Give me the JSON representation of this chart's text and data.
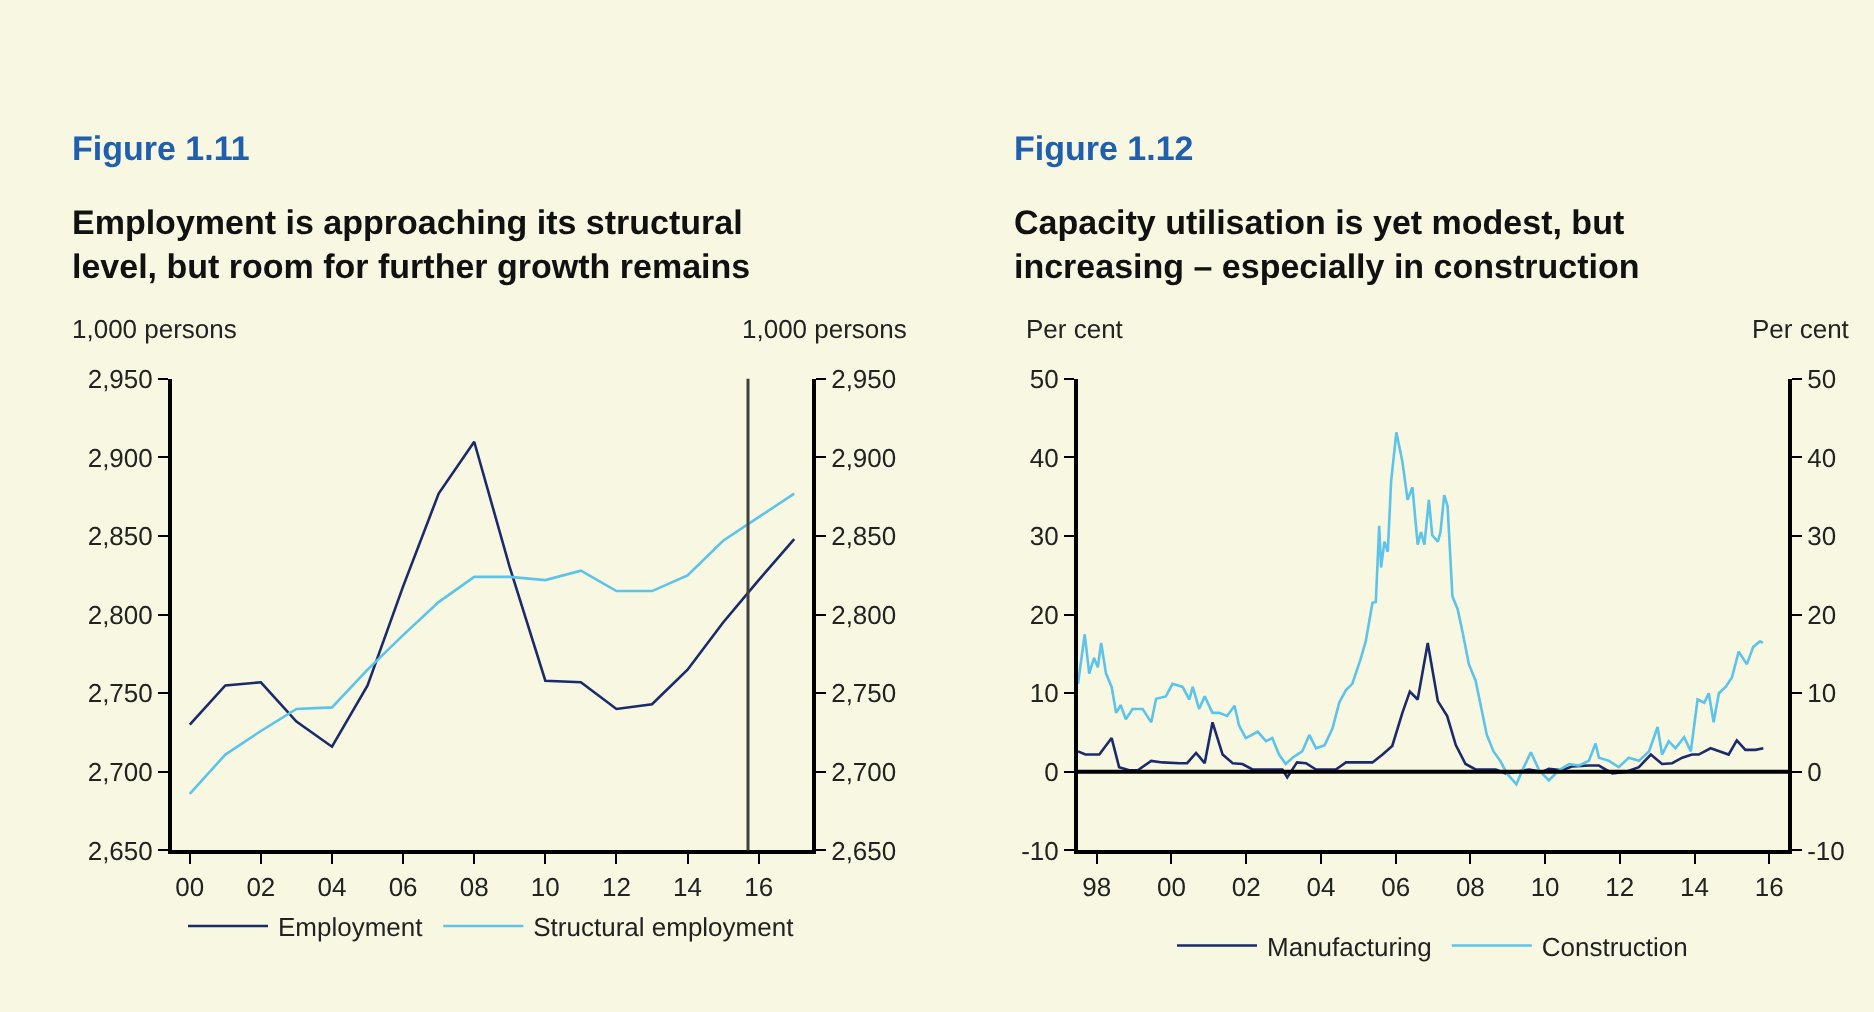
{
  "chart_data": [
    {
      "type": "line",
      "title": "Figure 1.11",
      "subtitle": "Employment is approaching its structural level, but room for further growth remains",
      "ylabel": "1,000 persons",
      "y2label": "1,000 persons",
      "x": [
        2000,
        2001,
        2002,
        2003,
        2004,
        2005,
        2006,
        2007,
        2008,
        2009,
        2010,
        2011,
        2012,
        2013,
        2014,
        2015,
        2016,
        2017
      ],
      "series": [
        {
          "name": "Employment",
          "color": "#1b2a6b",
          "values": [
            2730,
            2755,
            2757,
            2732,
            2716,
            2755,
            2818,
            2877,
            2910,
            2830,
            2758,
            2757,
            2740,
            2743,
            2765,
            2795,
            2822,
            2848
          ]
        },
        {
          "name": "Structural employment",
          "color": "#5cc3ea",
          "values": [
            2686,
            2711,
            2726,
            2740,
            2741,
            2765,
            2787,
            2808,
            2824,
            2824,
            2822,
            2828,
            2815,
            2815,
            2825,
            2847,
            2862,
            2877
          ]
        }
      ],
      "xlim": [
        1999.5,
        2017.5
      ],
      "xticks": [
        {
          "value": 2000,
          "label": "00"
        },
        {
          "value": 2002,
          "label": "02"
        },
        {
          "value": 2004,
          "label": "04"
        },
        {
          "value": 2006,
          "label": "06"
        },
        {
          "value": 2008,
          "label": "08"
        },
        {
          "value": 2010,
          "label": "10"
        },
        {
          "value": 2012,
          "label": "12"
        },
        {
          "value": 2014,
          "label": "14"
        },
        {
          "value": 2016,
          "label": "16"
        }
      ],
      "ylim": [
        2650,
        2950
      ],
      "yticks": [
        {
          "value": 2650,
          "label": "2,650"
        },
        {
          "value": 2700,
          "label": "2,700"
        },
        {
          "value": 2750,
          "label": "2,750"
        },
        {
          "value": 2800,
          "label": "2,800"
        },
        {
          "value": 2850,
          "label": "2,850"
        },
        {
          "value": 2900,
          "label": "2,900"
        },
        {
          "value": 2950,
          "label": "2,950"
        }
      ],
      "y2lim": [
        2650,
        2950
      ],
      "y2ticks": [
        {
          "value": 2650,
          "label": "2,650"
        },
        {
          "value": 2700,
          "label": "2,700"
        },
        {
          "value": 2750,
          "label": "2,750"
        },
        {
          "value": 2800,
          "label": "2,800"
        },
        {
          "value": 2850,
          "label": "2,850"
        },
        {
          "value": 2900,
          "label": "2,900"
        },
        {
          "value": 2950,
          "label": "2,950"
        }
      ],
      "ref_lines": [
        {
          "axis": "x",
          "value": 2015.7,
          "color": "#404040"
        }
      ],
      "grid": false,
      "legend": "bottom",
      "marker": "none",
      "line_style": "solid"
    },
    {
      "type": "line",
      "title": "Figure 1.12",
      "subtitle": "Capacity utilisation is yet modest, but increasing – especially in construction",
      "ylabel": "Per cent",
      "y2label": "Per cent",
      "series": [
        {
          "name": "Manufacturing",
          "color": "#1b2a6b",
          "x": [
            1997.5,
            1997.7,
            1998.07,
            1998.4,
            1998.6,
            1998.87,
            1999.1,
            1999.46,
            1999.76,
            2000.21,
            2000.42,
            2000.66,
            2000.89,
            2001.1,
            2001.37,
            2001.64,
            2001.9,
            2002.17,
            2002.7,
            2002.97,
            2003.1,
            2003.36,
            2003.6,
            2003.87,
            2004.4,
            2004.67,
            2005.02,
            2005.38,
            2005.65,
            2005.91,
            2006.18,
            2006.38,
            2006.59,
            2006.86,
            2007.13,
            2007.38,
            2007.61,
            2007.87,
            2008.14,
            2008.68,
            2008.94,
            2009.21,
            2009.57,
            2009.92,
            2010.1,
            2010.46,
            2010.73,
            2011.17,
            2011.44,
            2011.8,
            2012.15,
            2012.51,
            2012.83,
            2013.13,
            2013.4,
            2013.67,
            2013.93,
            2014.11,
            2014.43,
            2014.68,
            2014.91,
            2015.13,
            2015.36,
            2015.63,
            2015.84
          ],
          "values": [
            2.6,
            2.2,
            2.2,
            4.3,
            0.6,
            0.2,
            0.2,
            1.4,
            1.2,
            1.1,
            1.1,
            2.4,
            1.1,
            6.3,
            2.2,
            1.1,
            1.0,
            0.3,
            0.3,
            0.3,
            -0.7,
            1.2,
            1.1,
            0.3,
            0.3,
            1.2,
            1.2,
            1.2,
            2.2,
            3.3,
            7.5,
            10.2,
            9.2,
            16.4,
            9.0,
            7.1,
            3.4,
            1.0,
            0.3,
            0.3,
            -0.2,
            0,
            0.3,
            0,
            0.4,
            0.2,
            0.7,
            0.8,
            0.8,
            -0.2,
            0,
            0.6,
            2.2,
            1.0,
            1.1,
            1.8,
            2.2,
            2.2,
            3.0,
            2.6,
            2.2,
            4.0,
            2.8,
            2.8,
            3.0
          ]
        },
        {
          "name": "Construction",
          "color": "#5cc3ea",
          "x": [
            1997.5,
            1997.68,
            1997.8,
            1997.93,
            1998.03,
            1998.12,
            1998.25,
            1998.4,
            1998.52,
            1998.64,
            1998.78,
            1998.96,
            1999.23,
            1999.46,
            1999.59,
            1999.85,
            2000.03,
            2000.3,
            2000.48,
            2000.57,
            2000.74,
            2000.89,
            2001.1,
            2001.28,
            2001.49,
            2001.69,
            2001.81,
            2001.99,
            2002.31,
            2002.53,
            2002.7,
            2002.88,
            2003.06,
            2003.24,
            2003.5,
            2003.69,
            2003.87,
            2004.1,
            2004.31,
            2004.49,
            2004.67,
            2004.84,
            2005.06,
            2005.2,
            2005.38,
            2005.47,
            2005.56,
            2005.61,
            2005.7,
            2005.79,
            2005.88,
            2006.02,
            2006.18,
            2006.32,
            2006.45,
            2006.59,
            2006.68,
            2006.77,
            2006.89,
            2006.98,
            2007.13,
            2007.2,
            2007.3,
            2007.39,
            2007.52,
            2007.66,
            2007.79,
            2007.96,
            2008.14,
            2008.32,
            2008.44,
            2008.62,
            2008.8,
            2008.98,
            2009.23,
            2009.39,
            2009.62,
            2009.84,
            2010.1,
            2010.37,
            2010.64,
            2010.9,
            2011.17,
            2011.35,
            2011.44,
            2011.71,
            2011.97,
            2012.24,
            2012.51,
            2012.78,
            2013.01,
            2013.13,
            2013.31,
            2013.49,
            2013.72,
            2013.9,
            2014.08,
            2014.26,
            2014.38,
            2014.51,
            2014.65,
            2014.83,
            2015.0,
            2015.18,
            2015.4,
            2015.57,
            2015.75,
            2015.83
          ],
          "values": [
            11.2,
            17.5,
            12.5,
            14.5,
            13.3,
            16.4,
            12.5,
            10.8,
            7.5,
            8.5,
            6.7,
            8,
            8,
            6.3,
            9.3,
            9.6,
            11.2,
            10.8,
            9.2,
            10.8,
            8,
            9.6,
            7.5,
            7.5,
            7.1,
            8.4,
            5.9,
            4.3,
            5.1,
            3.9,
            4.3,
            2.2,
            1.0,
            1.8,
            2.6,
            4.7,
            3.0,
            3.4,
            5.5,
            8.8,
            10.4,
            11.2,
            14.3,
            16.6,
            21.5,
            21.6,
            31.3,
            26,
            29.3,
            28,
            37,
            43.2,
            39.5,
            34.6,
            36.2,
            28.9,
            30.5,
            28.9,
            34.6,
            30.1,
            29.3,
            30.5,
            35.2,
            33.8,
            22.3,
            20.7,
            17.8,
            13.7,
            11.6,
            7.5,
            4.7,
            2.6,
            1.4,
            -0.2,
            -1.6,
            0.2,
            2.5,
            0.2,
            -1.1,
            0.2,
            1.0,
            0.8,
            1.4,
            3.6,
            1.8,
            1.4,
            0.6,
            1.8,
            1.4,
            2.6,
            5.7,
            2.2,
            3.9,
            3.0,
            4.4,
            2.6,
            9.2,
            8.8,
            10,
            6.3,
            10,
            10.8,
            12,
            15.3,
            13.7,
            15.9,
            16.6,
            16.4
          ]
        }
      ],
      "xlim": [
        1997.5,
        2016.5
      ],
      "xticks": [
        {
          "value": 1998,
          "label": "98"
        },
        {
          "value": 2000,
          "label": "00"
        },
        {
          "value": 2002,
          "label": "02"
        },
        {
          "value": 2004,
          "label": "04"
        },
        {
          "value": 2006,
          "label": "06"
        },
        {
          "value": 2008,
          "label": "08"
        },
        {
          "value": 2010,
          "label": "10"
        },
        {
          "value": 2012,
          "label": "12"
        },
        {
          "value": 2014,
          "label": "14"
        },
        {
          "value": 2016,
          "label": "16"
        }
      ],
      "ylim": [
        -10,
        50
      ],
      "yticks": [
        -10,
        0,
        10,
        20,
        30,
        40,
        50
      ],
      "y2lim": [
        -10,
        50
      ],
      "y2ticks": [
        -10,
        0,
        10,
        20,
        30,
        40,
        50
      ],
      "ref_lines": [
        {
          "axis": "y",
          "value": 0,
          "color": "#000000"
        }
      ],
      "grid": false,
      "legend": "bottom",
      "marker": "none",
      "line_style": "solid"
    }
  ]
}
